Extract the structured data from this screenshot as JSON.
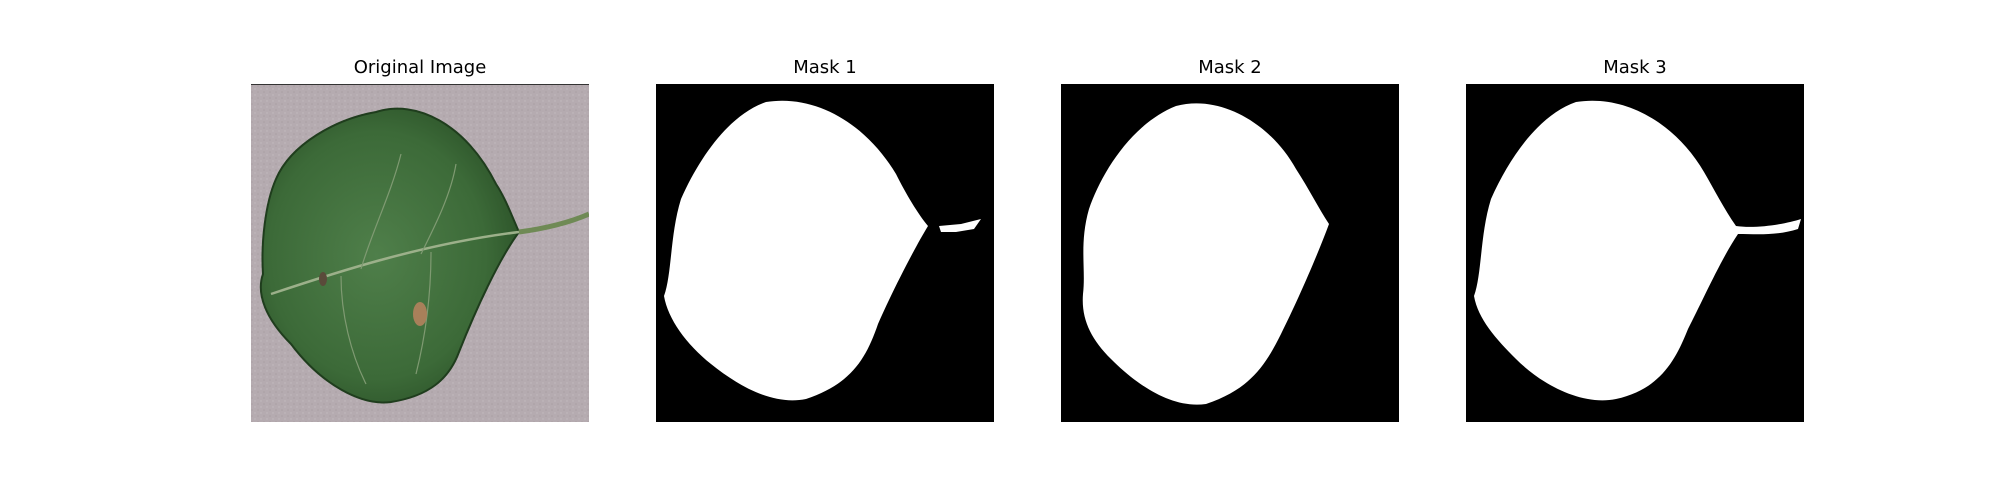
{
  "figure": {
    "panels": [
      {
        "title": "Original Image",
        "kind": "photo"
      },
      {
        "title": "Mask 1",
        "kind": "mask"
      },
      {
        "title": "Mask 2",
        "kind": "mask"
      },
      {
        "title": "Mask 3",
        "kind": "mask"
      }
    ]
  },
  "colors": {
    "background_photo": "#b3a8ad",
    "leaf_dark": "#2f5a2c",
    "leaf_mid": "#4a7a46",
    "vein": "#9cb08a",
    "lesion": "#a8805a",
    "mask_bg": "#000000",
    "mask_fg": "#ffffff"
  }
}
